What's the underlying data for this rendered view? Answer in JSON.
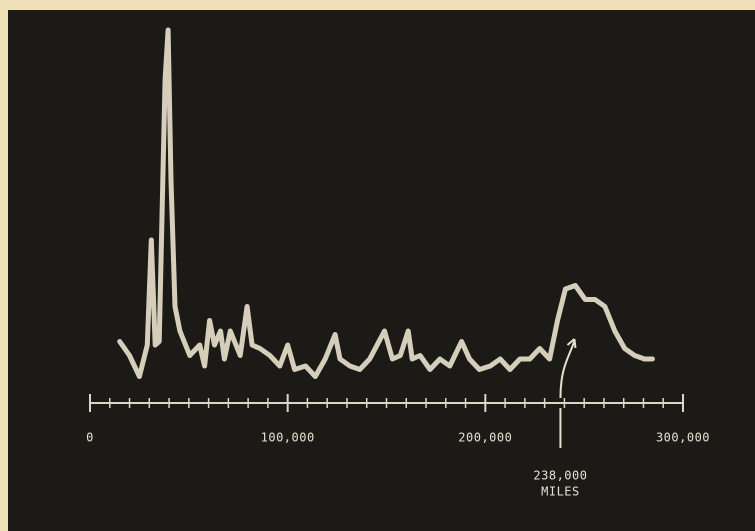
{
  "chart_data": {
    "type": "line",
    "color": "#e9e2cc",
    "x": [
      15000,
      20000,
      25000,
      29000,
      31000,
      33000,
      35000,
      38000,
      39500,
      41000,
      43000,
      45500,
      50500,
      55500,
      58000,
      60500,
      63000,
      66000,
      68000,
      71000,
      76000,
      79500,
      82000,
      86000,
      91000,
      96000,
      100000,
      103500,
      109000,
      114000,
      119000,
      124000,
      126500,
      131500,
      136500,
      141500,
      149000,
      153000,
      157000,
      161000,
      163000,
      167000,
      172000,
      177000,
      182000,
      188000,
      192000,
      197000,
      202500,
      207500,
      212500,
      217500,
      222500,
      227500,
      232500,
      236500,
      240500,
      245500,
      250500,
      255500,
      260500,
      265500,
      270500,
      275500,
      280500,
      284500
    ],
    "values": [
      11,
      7,
      1,
      10,
      40,
      10,
      11,
      86,
      100,
      57,
      21,
      14,
      7,
      10,
      4,
      17,
      10,
      14,
      6,
      14,
      7,
      21,
      10,
      9,
      7,
      4,
      10,
      3,
      4,
      1,
      6,
      13,
      6,
      4,
      3,
      6,
      14,
      6,
      7,
      14,
      6,
      7,
      3,
      6,
      4,
      11,
      6,
      3,
      4,
      6,
      3,
      6,
      6,
      9,
      6,
      17,
      26,
      27,
      23,
      23,
      21,
      14,
      9,
      7,
      6,
      6
    ],
    "xlim": [
      0,
      300000
    ],
    "ylim": [
      0,
      100
    ],
    "xticks": [
      {
        "value": 0,
        "label": "0"
      },
      {
        "value": 100000,
        "label": "100,000"
      },
      {
        "value": 200000,
        "label": "200,000"
      },
      {
        "value": 300000,
        "label": "300,000"
      }
    ],
    "xminorticks": [
      10000,
      20000,
      30000,
      40000,
      50000,
      60000,
      70000,
      80000,
      90000,
      110000,
      120000,
      130000,
      140000,
      150000,
      160000,
      170000,
      180000,
      190000,
      210000,
      220000,
      230000,
      240000,
      250000,
      260000,
      270000,
      280000,
      290000
    ],
    "annotations": [
      {
        "x": 238000,
        "label": [
          "238,000",
          "MILES"
        ]
      }
    ]
  }
}
